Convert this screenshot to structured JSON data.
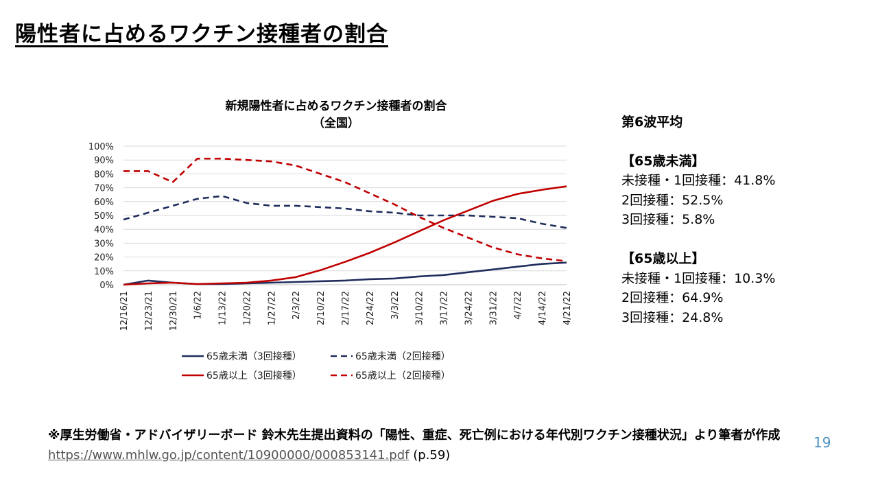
{
  "slide": {
    "title": "陽性者に占めるワクチン接種者の割合",
    "page_number": "19"
  },
  "chart_data": {
    "type": "line",
    "title": "新規陽性者に占めるワクチン接種者の割合",
    "subtitle": "（全国）",
    "x": [
      "12/16/21",
      "12/23/21",
      "12/30/21",
      "1/6/22",
      "1/13/22",
      "1/20/22",
      "1/27/22",
      "2/3/22",
      "2/10/22",
      "2/17/22",
      "2/24/22",
      "3/3/22",
      "3/10/22",
      "3/17/22",
      "3/24/22",
      "3/31/22",
      "4/7/22",
      "4/14/22",
      "4/21/22"
    ],
    "y_ticks": [
      "0%",
      "10%",
      "20%",
      "30%",
      "40%",
      "50%",
      "60%",
      "70%",
      "80%",
      "90%",
      "100%"
    ],
    "ylim": [
      0,
      100
    ],
    "grid": true,
    "legend_position": "bottom",
    "series": [
      {
        "name": "65歳未満（3回接種）",
        "color": "#1f2d5c",
        "dash": "solid",
        "values": [
          0,
          3,
          1.5,
          0.5,
          0.5,
          1,
          1.5,
          2,
          2.5,
          3,
          4,
          4.5,
          6,
          7,
          9,
          11,
          13,
          15,
          16
        ]
      },
      {
        "name": "65歳未満（2回接種）",
        "color": "#1f2d5c",
        "dash": "dashed",
        "values": [
          47,
          52,
          57,
          62,
          64,
          59,
          57,
          57,
          56,
          55,
          53,
          52,
          50,
          50,
          50,
          49,
          48,
          44,
          41
        ]
      },
      {
        "name": "65歳以上（3回接種）",
        "color": "#c00000",
        "dash": "solid",
        "values": [
          0,
          1,
          1.5,
          0.5,
          1,
          1.5,
          3,
          5.5,
          10.5,
          16.5,
          23,
          30.5,
          38.5,
          46.5,
          53.5,
          60.5,
          65.5,
          68.5,
          71
        ]
      },
      {
        "name": "65歳以上（2回接種）",
        "color": "#c00000",
        "dash": "dashed",
        "values": [
          82,
          82,
          74,
          91,
          91,
          90,
          89,
          86,
          80,
          74,
          66,
          58,
          49,
          41,
          34,
          27,
          22,
          19,
          17
        ]
      }
    ]
  },
  "stats": {
    "wave": "第6波平均",
    "groups": [
      {
        "header": "【65歳未満】",
        "lines": [
          "未接種・1回接種：41.8%",
          "2回接種：52.5%",
          "3回接種：5.8%"
        ]
      },
      {
        "header": "【65歳以上】",
        "lines": [
          "未接種・1回接種：10.3%",
          "2回接種：64.9%",
          "3回接種：24.8%"
        ]
      }
    ]
  },
  "footnote": {
    "text": "※厚生労働省・アドバイザリーボード 鈴木先生提出資料の「陽性、重症、死亡例における年代別ワクチン接種状況」より筆者が作成",
    "link": "https://www.mhlw.go.jp/content/10900000/000853141.pdf",
    "page_ref": "(p.59)"
  }
}
